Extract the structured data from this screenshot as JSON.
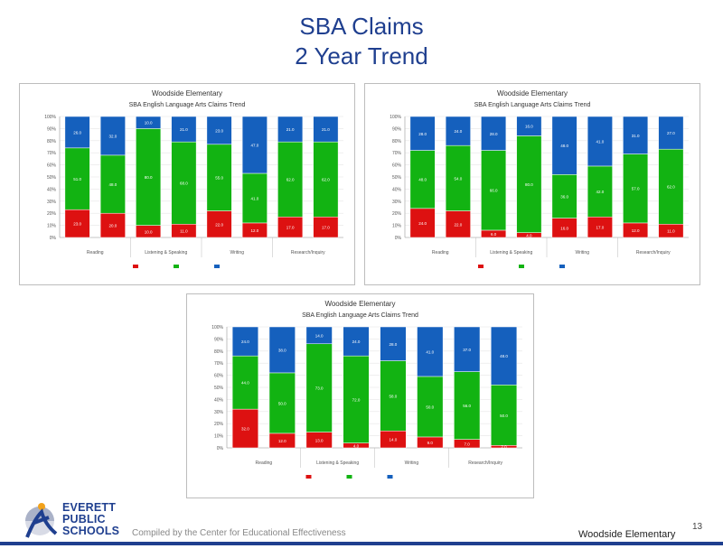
{
  "slide": {
    "title_line1": "SBA Claims",
    "title_line2": "2 Year Trend",
    "compiled_by": "Compiled by the Center for Educational Effectiveness",
    "school_footer": "Woodside Elementary",
    "page_number": "13",
    "logo_lines": [
      "EVERETT",
      "PUBLIC",
      "SCHOOLS"
    ]
  },
  "colors": {
    "below": "#dd1111",
    "at": "#12b312",
    "above": "#1560bd",
    "title": "#1f3f8f"
  },
  "chart_data": [
    {
      "type": "bar",
      "stacked": true,
      "title": "Woodside Elementary",
      "subtitle": "SBA English Language Arts Claims Trend",
      "ylabel": "",
      "xlabel": "",
      "ylim": [
        0,
        100
      ],
      "legend_position": "bottom",
      "groups": [
        "Reading",
        "Listening & Speaking",
        "Writing",
        "Research/Inquiry"
      ],
      "categories": [
        "",
        "",
        "",
        "",
        "",
        "",
        "",
        ""
      ],
      "series": [
        {
          "name": "",
          "values": [
            23,
            20,
            10,
            11,
            22,
            12,
            17,
            17
          ]
        },
        {
          "name": "",
          "values": [
            51,
            48,
            80,
            68,
            55,
            41,
            62,
            62
          ]
        },
        {
          "name": "",
          "values": [
            26,
            32,
            10,
            21,
            23,
            47,
            21,
            21
          ]
        }
      ]
    },
    {
      "type": "bar",
      "stacked": true,
      "title": "Woodside Elementary",
      "subtitle": "SBA English Language Arts Claims Trend",
      "ylabel": "",
      "xlabel": "",
      "ylim": [
        0,
        100
      ],
      "legend_position": "bottom",
      "groups": [
        "Reading",
        "Listening & Speaking",
        "Writing",
        "Research/Inquiry"
      ],
      "categories": [
        "",
        "",
        "",
        "",
        "",
        "",
        "",
        ""
      ],
      "series": [
        {
          "name": "",
          "values": [
            24,
            22,
            6,
            4,
            16,
            17,
            12,
            11
          ]
        },
        {
          "name": "",
          "values": [
            48,
            54,
            66,
            80,
            36,
            42,
            57,
            62
          ]
        },
        {
          "name": "",
          "values": [
            28,
            24,
            28,
            16,
            48,
            41,
            31,
            27
          ]
        }
      ]
    },
    {
      "type": "bar",
      "stacked": true,
      "title": "Woodside Elementary",
      "subtitle": "SBA English Language Arts Claims Trend",
      "ylabel": "",
      "xlabel": "",
      "ylim": [
        0,
        100
      ],
      "legend_position": "bottom",
      "groups": [
        "Reading",
        "Listening & Speaking",
        "Writing",
        "Research/Inquiry"
      ],
      "categories": [
        "",
        "",
        "",
        "",
        "",
        "",
        "",
        ""
      ],
      "series": [
        {
          "name": "",
          "values": [
            32,
            12,
            13,
            4,
            14,
            9,
            7,
            2
          ]
        },
        {
          "name": "",
          "values": [
            44,
            50,
            73,
            72,
            58,
            50,
            56,
            50
          ]
        },
        {
          "name": "",
          "values": [
            24,
            38,
            14,
            24,
            28,
            41,
            37,
            48
          ]
        }
      ]
    }
  ]
}
